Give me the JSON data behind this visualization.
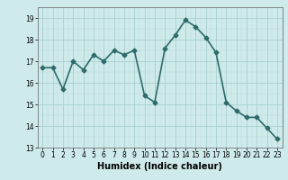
{
  "x": [
    0,
    1,
    2,
    3,
    4,
    5,
    6,
    7,
    8,
    9,
    10,
    11,
    12,
    13,
    14,
    15,
    16,
    17,
    18,
    19,
    20,
    21,
    22,
    23
  ],
  "y": [
    16.7,
    16.7,
    15.7,
    17.0,
    16.6,
    17.3,
    17.0,
    17.5,
    17.3,
    17.5,
    15.4,
    15.1,
    17.6,
    18.2,
    18.9,
    18.6,
    18.1,
    17.4,
    15.1,
    14.7,
    14.4,
    14.4,
    13.9,
    13.4
  ],
  "line_color": "#2e6b6b",
  "marker": "D",
  "markersize": 2.5,
  "linewidth": 1.2,
  "bg_color": "#ceeaea",
  "grid_color_major": "#aacfcf",
  "grid_color_minor": "#bddada",
  "xlabel": "Humidex (Indice chaleur)",
  "xlabel_fontsize": 7,
  "xlim": [
    -0.5,
    23.5
  ],
  "ylim": [
    13,
    19.5
  ],
  "yticks": [
    13,
    14,
    15,
    16,
    17,
    18,
    19
  ],
  "xticks": [
    0,
    1,
    2,
    3,
    4,
    5,
    6,
    7,
    8,
    9,
    10,
    11,
    12,
    13,
    14,
    15,
    16,
    17,
    18,
    19,
    20,
    21,
    22,
    23
  ],
  "tick_fontsize": 5.5
}
